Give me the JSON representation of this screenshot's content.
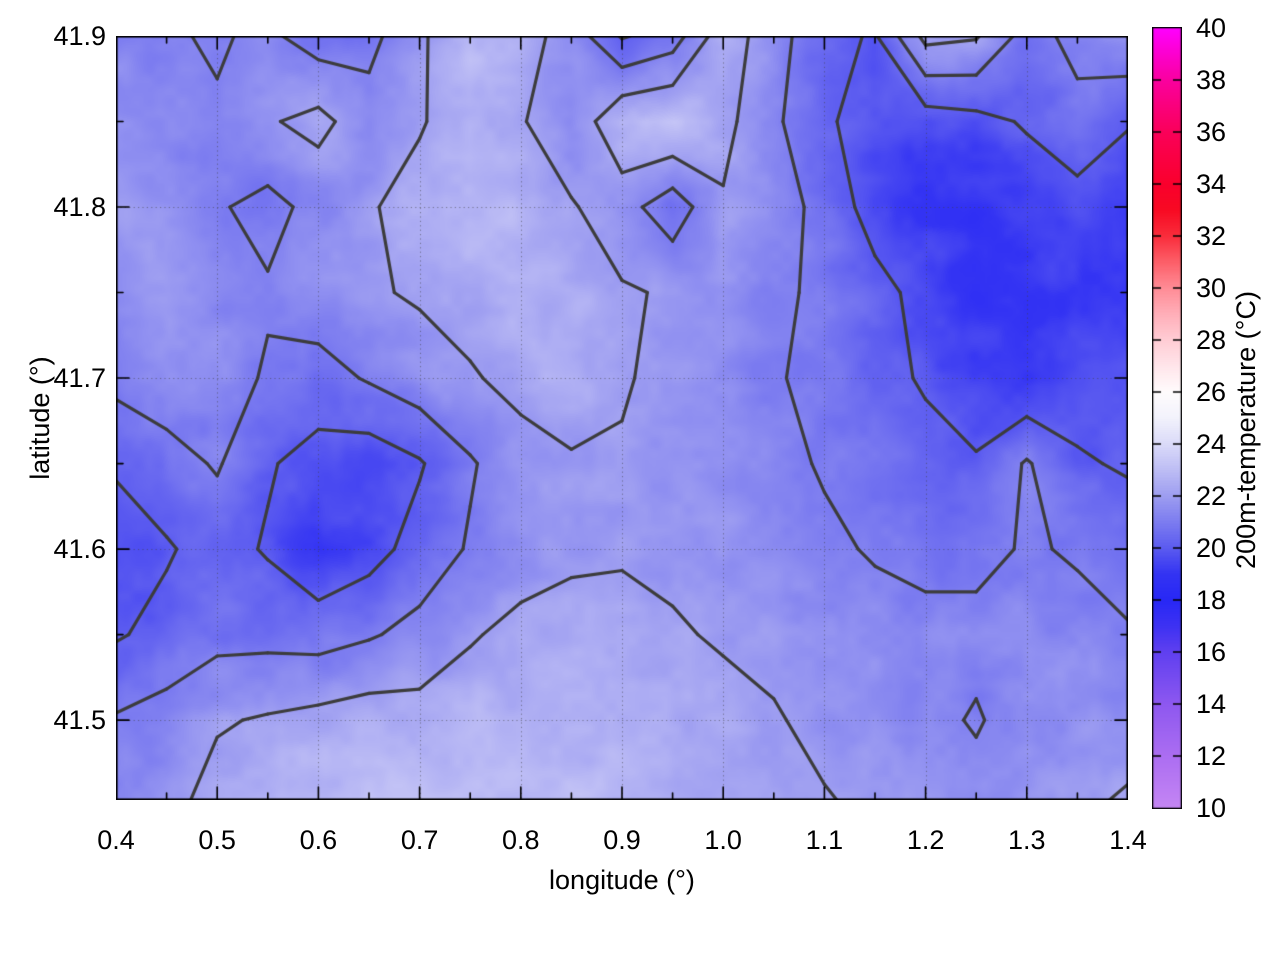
{
  "figure": {
    "background": "#ffffff",
    "frame_color": "#000000"
  },
  "chart_data": {
    "type": "heatmap",
    "subtype": "filled-heatmap-with-contours",
    "title": "",
    "xlabel": "longitude (°)",
    "ylabel": "latitude (°)",
    "colorbar_label": "200m-temperature (°C)",
    "xlim": [
      0.4,
      1.4
    ],
    "ylim": [
      41.4533,
      41.9
    ],
    "x_ticks": [
      0.4,
      0.5,
      0.6,
      0.7,
      0.8,
      0.9,
      1.0,
      1.1,
      1.2,
      1.3,
      1.4
    ],
    "x_tick_labels": [
      "0.4",
      "0.5",
      "0.6",
      "0.7",
      "0.8",
      "0.9",
      "1.0",
      "1.1",
      "1.2",
      "1.3",
      "1.4"
    ],
    "y_ticks": [
      41.5,
      41.6,
      41.7,
      41.8,
      41.9
    ],
    "y_tick_labels": [
      "41.5",
      "41.6",
      "41.7",
      "41.8",
      "41.9"
    ],
    "minor_tick_step_x": 0.05,
    "minor_tick_step_y": 0.05,
    "grid_on": true,
    "colorbar_range": [
      10,
      40
    ],
    "colorbar_ticks": [
      10,
      12,
      14,
      16,
      18,
      20,
      22,
      24,
      26,
      28,
      30,
      32,
      34,
      36,
      38,
      40
    ],
    "colorbar_tick_labels": [
      "10",
      "12",
      "14",
      "16",
      "18",
      "20",
      "22",
      "24",
      "26",
      "28",
      "30",
      "32",
      "34",
      "36",
      "38",
      "40"
    ],
    "contour_levels": [
      20,
      21,
      22
    ],
    "contour_color": "#3c3c3c",
    "palette_stops": [
      [
        10,
        197,
        134,
        244
      ],
      [
        12,
        172,
        110,
        242
      ],
      [
        14,
        142,
        88,
        240
      ],
      [
        16,
        96,
        64,
        240
      ],
      [
        17,
        62,
        50,
        243
      ],
      [
        18,
        40,
        40,
        246
      ],
      [
        19,
        52,
        52,
        243
      ],
      [
        20,
        92,
        92,
        240
      ],
      [
        21,
        125,
        125,
        240
      ],
      [
        22,
        158,
        158,
        241
      ],
      [
        23,
        190,
        190,
        245
      ],
      [
        24,
        219,
        219,
        249
      ],
      [
        25,
        243,
        243,
        252
      ],
      [
        26,
        255,
        252,
        253
      ],
      [
        27,
        255,
        230,
        235
      ],
      [
        28,
        255,
        205,
        213
      ],
      [
        29,
        255,
        175,
        185
      ],
      [
        30,
        255,
        140,
        150
      ],
      [
        31,
        253,
        95,
        105
      ],
      [
        32,
        250,
        45,
        60
      ],
      [
        33,
        248,
        10,
        35
      ],
      [
        34,
        250,
        0,
        45
      ],
      [
        36,
        250,
        0,
        90
      ],
      [
        38,
        250,
        0,
        160
      ],
      [
        40,
        255,
        0,
        255
      ]
    ],
    "lon_values": [
      0.4,
      0.45,
      0.5,
      0.55,
      0.6,
      0.65,
      0.7,
      0.75,
      0.8,
      0.85,
      0.9,
      0.95,
      1.0,
      1.05,
      1.1,
      1.15,
      1.2,
      1.25,
      1.3,
      1.35,
      1.4
    ],
    "lat_values": [
      41.9,
      41.85,
      41.8,
      41.75,
      41.7,
      41.65,
      41.6,
      41.55,
      41.5,
      41.45
    ],
    "temperature_grid": [
      [
        21.3,
        21.1,
        20.9,
        21.2,
        20.5,
        20.7,
        21.8,
        23.0,
        22.4,
        21.6,
        19.9,
        20.5,
        22.6,
        21.4,
        20.3,
        19.9,
        22.3,
        22.1,
        20.6,
        21.3,
        21.8
      ],
      [
        21.6,
        21.4,
        21.1,
        21.9,
        22.3,
        21.4,
        21.9,
        22.6,
        22.1,
        21.2,
        22.9,
        23.1,
        22.3,
        21.2,
        20.1,
        19.7,
        19.5,
        19.7,
        20.1,
        20.7,
        20.1
      ],
      [
        21.9,
        21.6,
        21.1,
        20.7,
        21.3,
        21.9,
        22.4,
        22.9,
        22.6,
        22.1,
        21.4,
        20.4,
        21.9,
        21.6,
        20.6,
        19.6,
        19.1,
        18.9,
        19.4,
        19.6,
        19.1
      ],
      [
        21.6,
        21.9,
        21.4,
        21.1,
        21.6,
        21.9,
        22.1,
        22.4,
        22.6,
        22.4,
        22.1,
        21.9,
        21.6,
        21.1,
        20.9,
        20.3,
        19.7,
        18.9,
        18.8,
        19.3,
        19.1
      ],
      [
        21.3,
        21.6,
        21.4,
        20.9,
        20.6,
        21.1,
        21.6,
        21.9,
        22.3,
        22.5,
        22.1,
        21.7,
        21.4,
        21.1,
        20.7,
        20.3,
        19.9,
        19.4,
        19.1,
        19.6,
        19.9
      ],
      [
        20.1,
        20.6,
        21.1,
        20.1,
        19.6,
        19.4,
        19.9,
        20.9,
        21.6,
        21.9,
        21.9,
        21.7,
        21.5,
        21.3,
        20.9,
        20.7,
        20.3,
        20.1,
        21.1,
        20.1,
        19.9
      ],
      [
        19.6,
        19.9,
        20.4,
        19.9,
        19.1,
        19.6,
        20.4,
        21.1,
        21.5,
        21.8,
        21.9,
        21.8,
        21.7,
        21.5,
        21.2,
        20.9,
        20.6,
        20.7,
        21.1,
        20.9,
        20.5
      ],
      [
        19.9,
        20.3,
        20.7,
        20.7,
        20.6,
        20.9,
        21.3,
        21.9,
        22.3,
        22.4,
        22.3,
        22.1,
        21.9,
        21.7,
        21.5,
        21.4,
        21.4,
        21.3,
        21.4,
        21.3,
        21.1
      ],
      [
        21.1,
        21.4,
        21.9,
        22.1,
        22.3,
        22.5,
        22.4,
        22.6,
        22.7,
        22.6,
        22.5,
        22.4,
        22.3,
        22.1,
        21.7,
        21.5,
        21.3,
        20.9,
        21.5,
        21.6,
        21.7
      ],
      [
        21.3,
        21.7,
        22.4,
        22.7,
        22.9,
        23.1,
        23.2,
        22.9,
        22.8,
        22.9,
        22.7,
        22.5,
        22.4,
        22.2,
        22.1,
        21.8,
        21.6,
        21.4,
        21.7,
        21.9,
        22.1
      ]
    ]
  }
}
